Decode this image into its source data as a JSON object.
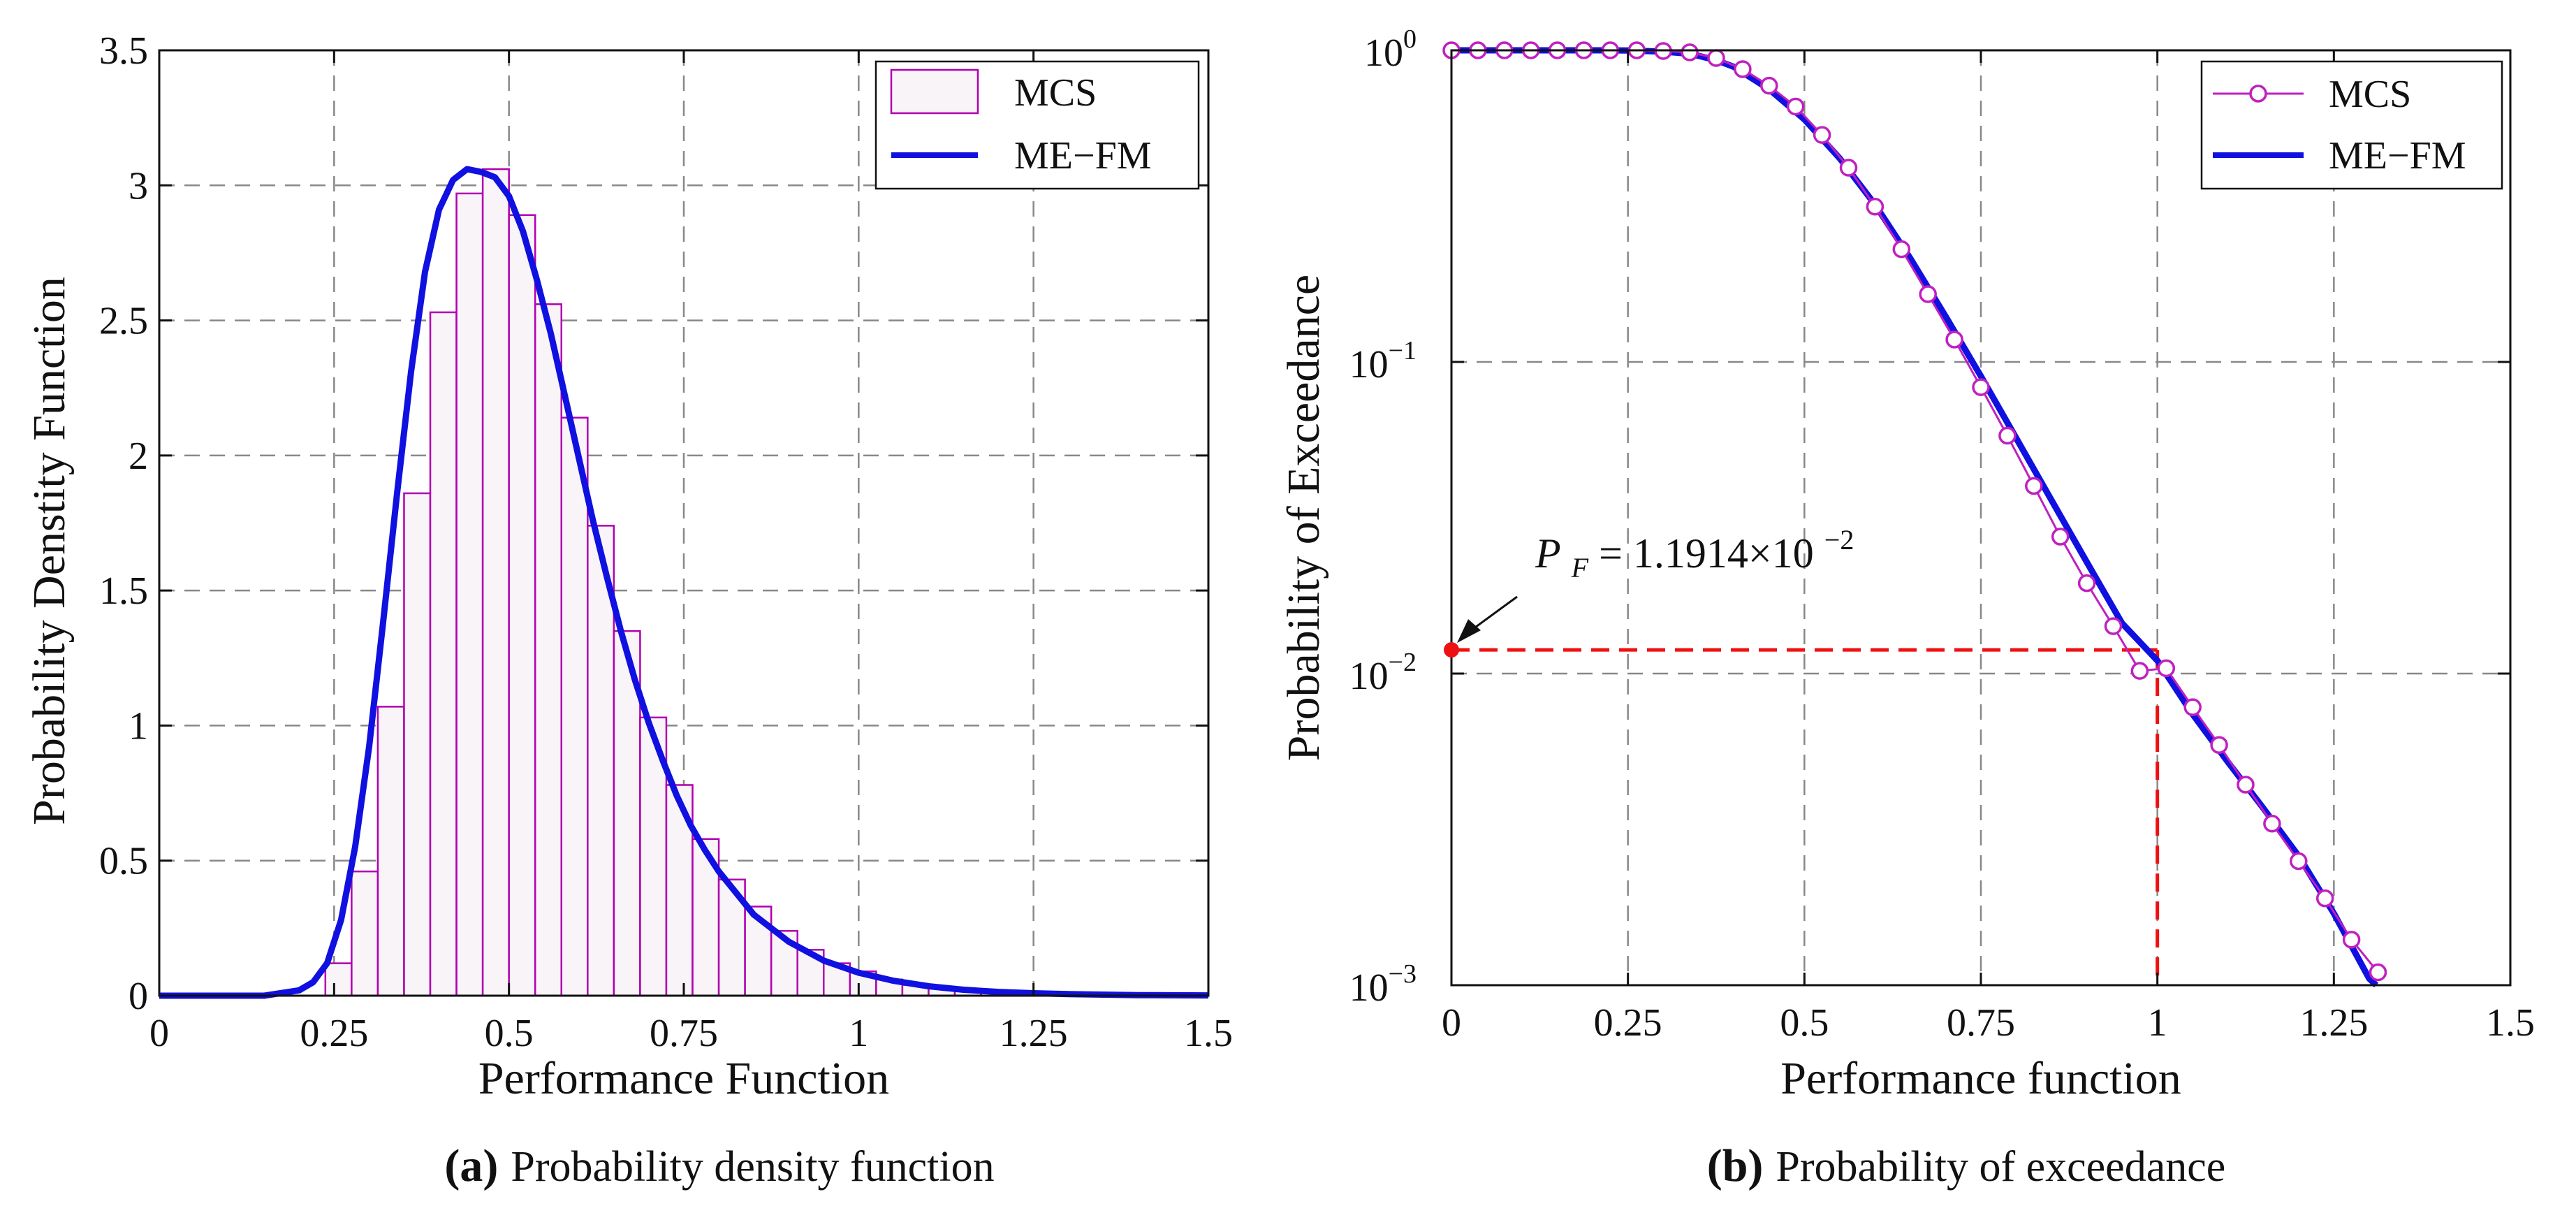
{
  "colors": {
    "mcs_bar_edge": "#b000b0",
    "mcs_bar_fill": "#f8f4f8",
    "mcs_marker": "#c020c0",
    "me_fm_line": "#1010e0",
    "reference_line": "#ee1111",
    "grid": "#888888"
  },
  "chart_data": [
    {
      "type": "bar",
      "caption_tag": "(a)",
      "caption": "Probability density function",
      "xlabel": "Performance Function",
      "ylabel": "Probability Denstity Function",
      "xlim": [
        0,
        1.5
      ],
      "ylim": [
        0,
        3.5
      ],
      "xticks": [
        "0",
        "0.25",
        "0.5",
        "0.75",
        "1",
        "1.25",
        "1.5"
      ],
      "yticks": [
        "0",
        "0.5",
        "1",
        "1.5",
        "2",
        "2.5",
        "3",
        "3.5"
      ],
      "grid": true,
      "legend_position": "top-right",
      "series": [
        {
          "name": "MCS",
          "kind": "histogram",
          "bin_width": 0.0375,
          "bin_left_edges": [
            0.2375,
            0.275,
            0.3125,
            0.35,
            0.3875,
            0.425,
            0.4625,
            0.5,
            0.5375,
            0.575,
            0.6125,
            0.65,
            0.6875,
            0.725,
            0.7625,
            0.8,
            0.8375,
            0.875,
            0.9125,
            0.95,
            0.9875,
            1.025,
            1.0625,
            1.1,
            1.1375,
            1.175,
            1.2125
          ],
          "values": [
            0.12,
            0.46,
            1.07,
            1.86,
            2.53,
            2.97,
            3.06,
            2.89,
            2.56,
            2.14,
            1.74,
            1.35,
            1.03,
            0.78,
            0.58,
            0.43,
            0.33,
            0.24,
            0.17,
            0.12,
            0.09,
            0.06,
            0.04,
            0.03,
            0.02,
            0.01,
            0.01
          ]
        },
        {
          "name": "ME−FM",
          "kind": "line",
          "x": [
            0,
            0.15,
            0.2,
            0.22,
            0.24,
            0.26,
            0.28,
            0.3,
            0.32,
            0.34,
            0.36,
            0.38,
            0.4,
            0.42,
            0.44,
            0.46,
            0.48,
            0.5,
            0.52,
            0.54,
            0.56,
            0.58,
            0.6,
            0.62,
            0.64,
            0.66,
            0.68,
            0.7,
            0.72,
            0.74,
            0.76,
            0.78,
            0.8,
            0.85,
            0.9,
            0.95,
            1.0,
            1.05,
            1.1,
            1.15,
            1.2,
            1.25,
            1.3,
            1.4,
            1.5
          ],
          "y": [
            0,
            0,
            0.02,
            0.05,
            0.12,
            0.28,
            0.55,
            0.92,
            1.38,
            1.86,
            2.31,
            2.68,
            2.91,
            3.02,
            3.06,
            3.05,
            3.03,
            2.96,
            2.83,
            2.65,
            2.45,
            2.22,
            1.99,
            1.76,
            1.55,
            1.35,
            1.17,
            1.01,
            0.87,
            0.74,
            0.63,
            0.54,
            0.46,
            0.3,
            0.2,
            0.13,
            0.085,
            0.055,
            0.035,
            0.022,
            0.014,
            0.009,
            0.006,
            0.002,
            0.001
          ]
        }
      ]
    },
    {
      "type": "line",
      "caption_tag": "(b)",
      "caption": "Probability of exceedance",
      "xlabel": "Performance function",
      "ylabel": "Probability of  Exceedance",
      "xlim": [
        0,
        1.5
      ],
      "ylim": [
        0.001,
        1
      ],
      "yscale": "log",
      "xticks": [
        "0",
        "0.25",
        "0.5",
        "0.75",
        "1",
        "1.25",
        "1.5"
      ],
      "yticks": [
        {
          "value": 1,
          "base": "10",
          "exp": "0"
        },
        {
          "value": 0.1,
          "base": "10",
          "exp": "−1"
        },
        {
          "value": 0.01,
          "base": "10",
          "exp": "−2"
        },
        {
          "value": 0.001,
          "base": "10",
          "exp": "−3"
        }
      ],
      "grid": true,
      "legend_position": "top-right",
      "annotation": {
        "sym": "P",
        "sub": "F",
        "text": "= 1.1914×10",
        "exp": "−2",
        "point": {
          "x": 0,
          "y": 0.011914
        },
        "reference_x": 1.0,
        "reference_y": 0.011914
      },
      "series": [
        {
          "name": "MCS",
          "kind": "markers",
          "x": [
            0,
            0.0375,
            0.075,
            0.1125,
            0.15,
            0.1875,
            0.225,
            0.2625,
            0.3,
            0.3375,
            0.375,
            0.4125,
            0.45,
            0.4875,
            0.525,
            0.5625,
            0.6,
            0.6375,
            0.675,
            0.7125,
            0.75,
            0.7875,
            0.825,
            0.8625,
            0.9,
            0.9375,
            0.975,
            1.0125,
            1.05,
            1.0875,
            1.125,
            1.1625,
            1.2,
            1.2375,
            1.275,
            1.3125
          ],
          "y": [
            1,
            1,
            1,
            1,
            1,
            1,
            1,
            1,
            0.995,
            0.985,
            0.945,
            0.87,
            0.77,
            0.66,
            0.535,
            0.42,
            0.315,
            0.23,
            0.165,
            0.118,
            0.083,
            0.058,
            0.04,
            0.0275,
            0.0195,
            0.0142,
            0.0102,
            0.0104,
            0.0078,
            0.0059,
            0.0044,
            0.0033,
            0.0025,
            0.0019,
            0.0014,
            0.0011
          ]
        },
        {
          "name": "ME−FM",
          "kind": "line",
          "x": [
            0,
            0.2,
            0.25,
            0.3,
            0.325,
            0.35,
            0.375,
            0.4,
            0.45,
            0.5,
            0.55,
            0.6,
            0.65,
            0.7,
            0.75,
            0.8,
            0.85,
            0.9,
            0.95,
            1.0,
            1.05,
            1.1,
            1.15,
            1.2,
            1.25,
            1.3,
            1.31
          ],
          "y": [
            1,
            1,
            0.999,
            0.99,
            0.98,
            0.96,
            0.93,
            0.885,
            0.75,
            0.6,
            0.45,
            0.32,
            0.215,
            0.14,
            0.09,
            0.057,
            0.036,
            0.0228,
            0.0145,
            0.011,
            0.0074,
            0.0052,
            0.0037,
            0.0026,
            0.0017,
            0.00105,
            0.001
          ]
        }
      ]
    }
  ]
}
